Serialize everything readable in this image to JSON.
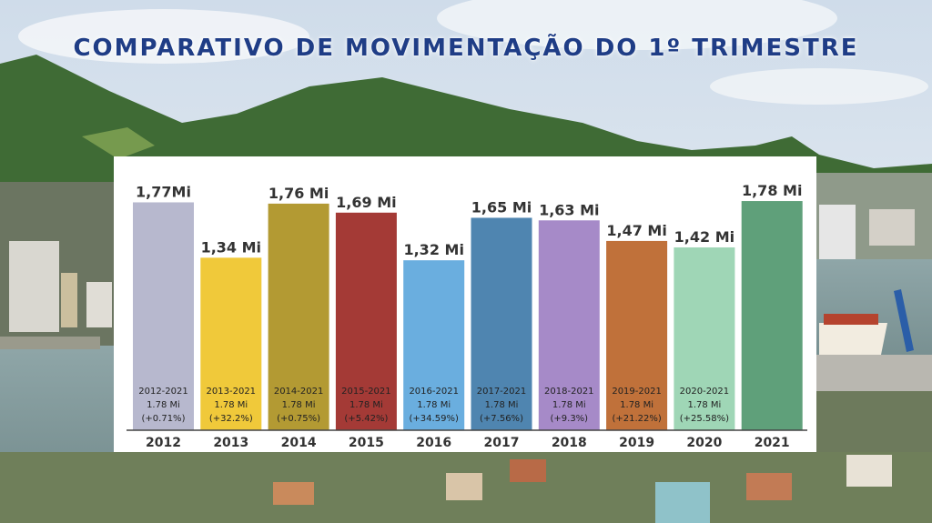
{
  "title": "COMPARATIVO DE MOVIMENTAÇÃO DO 1º TRIMESTRE",
  "chart_data": {
    "type": "bar",
    "categories": [
      "2012",
      "2013",
      "2014",
      "2015",
      "2016",
      "2017",
      "2018",
      "2019",
      "2020",
      "2021"
    ],
    "values": [
      1.77,
      1.34,
      1.76,
      1.69,
      1.32,
      1.65,
      1.63,
      1.47,
      1.42,
      1.78
    ],
    "value_labels": [
      "1,77Mi",
      "1,34 Mi",
      "1,76 Mi",
      "1,69 Mi",
      "1,32 Mi",
      "1,65 Mi",
      "1,63 Mi",
      "1,47 Mi",
      "1,42 Mi",
      "1,78 Mi"
    ],
    "colors": [
      "#b7b8ce",
      "#f0c93a",
      "#b39a33",
      "#a43a36",
      "#6aaedf",
      "#4f85b0",
      "#a68ac8",
      "#c0713a",
      "#9fd6b6",
      "#5fa07a"
    ],
    "annotations": [
      [
        "2012-2021",
        "1.78 Mi",
        "(+0.71%)"
      ],
      [
        "2013-2021",
        "1.78 Mi",
        "(+32.2%)"
      ],
      [
        "2014-2021",
        "1.78 Mi",
        "(+0.75%)"
      ],
      [
        "2015-2021",
        "1.78 Mi",
        "(+5.42%)"
      ],
      [
        "2016-2021",
        "1.78 Mi",
        "(+34.59%)"
      ],
      [
        "2017-2021",
        "1.78 Mi",
        "(+7.56%)"
      ],
      [
        "2018-2021",
        "1.78 Mi",
        "(+9.3%)"
      ],
      [
        "2019-2021",
        "1.78 Mi",
        "(+21.22%)"
      ],
      [
        "2020-2021",
        "1.78 Mi",
        "(+25.58%)"
      ],
      null
    ],
    "ylim": [
      0,
      2.07
    ],
    "xlabel": "",
    "ylabel": "",
    "grid": false
  }
}
